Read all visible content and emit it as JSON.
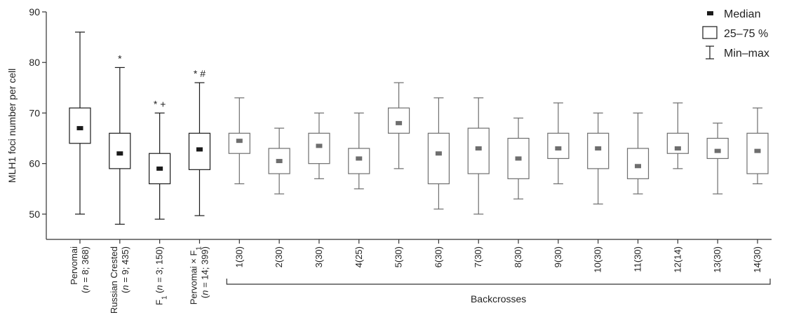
{
  "chart_data": {
    "type": "boxplot",
    "ylabel": "MLH1 foci number per cell",
    "ylim": [
      45,
      90
    ],
    "yticks": [
      50,
      60,
      70,
      80,
      90
    ],
    "legend": {
      "placement": "top-right",
      "items": [
        {
          "label": "Median",
          "symbol": "median"
        },
        {
          "label": "25–75 %",
          "symbol": "box"
        },
        {
          "label": "Min–max",
          "symbol": "whisker"
        }
      ]
    },
    "group_label": "Backcrosses",
    "colors": {
      "parental": "#1a1a1a",
      "backcross": "#6e6e6e",
      "axis": "#333333"
    },
    "categories": [
      {
        "lines": [
          {
            "t": "Pervomai"
          },
          {
            "t": "(",
            "it": "n",
            "r": " = 8; 368)"
          }
        ],
        "min": 50,
        "q1": 64,
        "median": 67,
        "q3": 71,
        "max": 86,
        "annotation": "",
        "group": "parental"
      },
      {
        "lines": [
          {
            "t": "Russian Crested"
          },
          {
            "t": "(",
            "it": "n",
            "r": " = 9; 435)"
          }
        ],
        "min": 48,
        "q1": 59,
        "median": 62,
        "q3": 66,
        "max": 79,
        "annotation": "*",
        "group": "parental"
      },
      {
        "lines": [
          {
            "t": "F",
            "sub": "1",
            "r": " (",
            "it": "n",
            "r2": " = 3; 150)"
          }
        ],
        "min": 49,
        "q1": 56,
        "median": 59,
        "q3": 62,
        "max": 70,
        "annotation": "* +",
        "group": "parental"
      },
      {
        "lines": [
          {
            "t": "Pervomai × F",
            "sub": "1"
          },
          {
            "t": "(",
            "it": "n",
            "r": " = 14; 399)"
          }
        ],
        "min": 49.7,
        "q1": 58.8,
        "median": 62.8,
        "q3": 66,
        "max": 76,
        "annotation": "* #",
        "group": "parental"
      },
      {
        "lines": [
          {
            "t": "1(30)"
          }
        ],
        "min": 56,
        "q1": 62,
        "median": 64.5,
        "q3": 66,
        "max": 73,
        "annotation": "",
        "group": "backcross"
      },
      {
        "lines": [
          {
            "t": "2(30)"
          }
        ],
        "min": 54,
        "q1": 58,
        "median": 60.5,
        "q3": 63,
        "max": 67,
        "annotation": "",
        "group": "backcross"
      },
      {
        "lines": [
          {
            "t": "3(30)"
          }
        ],
        "min": 57,
        "q1": 60,
        "median": 63.5,
        "q3": 66,
        "max": 70,
        "annotation": "",
        "group": "backcross"
      },
      {
        "lines": [
          {
            "t": "4(25)"
          }
        ],
        "min": 55,
        "q1": 58,
        "median": 61,
        "q3": 63,
        "max": 70,
        "annotation": "",
        "group": "backcross"
      },
      {
        "lines": [
          {
            "t": "5(30)"
          }
        ],
        "min": 59,
        "q1": 66,
        "median": 68,
        "q3": 71,
        "max": 76,
        "annotation": "",
        "group": "backcross"
      },
      {
        "lines": [
          {
            "t": "6(30)"
          }
        ],
        "min": 51,
        "q1": 56,
        "median": 62,
        "q3": 66,
        "max": 73,
        "annotation": "",
        "group": "backcross"
      },
      {
        "lines": [
          {
            "t": "7(30)"
          }
        ],
        "min": 50,
        "q1": 58,
        "median": 63,
        "q3": 67,
        "max": 73,
        "annotation": "",
        "group": "backcross"
      },
      {
        "lines": [
          {
            "t": "8(30)"
          }
        ],
        "min": 53,
        "q1": 57,
        "median": 61,
        "q3": 65,
        "max": 69,
        "annotation": "",
        "group": "backcross"
      },
      {
        "lines": [
          {
            "t": "9(30)"
          }
        ],
        "min": 56,
        "q1": 61,
        "median": 63,
        "q3": 66,
        "max": 72,
        "annotation": "",
        "group": "backcross"
      },
      {
        "lines": [
          {
            "t": "10(30)"
          }
        ],
        "min": 52,
        "q1": 59,
        "median": 63,
        "q3": 66,
        "max": 70,
        "annotation": "",
        "group": "backcross"
      },
      {
        "lines": [
          {
            "t": "11(30)"
          }
        ],
        "min": 54,
        "q1": 57,
        "median": 59.5,
        "q3": 63,
        "max": 70,
        "annotation": "",
        "group": "backcross"
      },
      {
        "lines": [
          {
            "t": "12(14)"
          }
        ],
        "min": 59,
        "q1": 62,
        "median": 63,
        "q3": 66,
        "max": 72,
        "annotation": "",
        "group": "backcross"
      },
      {
        "lines": [
          {
            "t": "13(30)"
          }
        ],
        "min": 54,
        "q1": 61,
        "median": 62.5,
        "q3": 65,
        "max": 68,
        "annotation": "",
        "group": "backcross"
      },
      {
        "lines": [
          {
            "t": "14(30)"
          }
        ],
        "min": 56,
        "q1": 58,
        "median": 62.5,
        "q3": 66,
        "max": 71,
        "annotation": "",
        "group": "backcross"
      }
    ]
  }
}
